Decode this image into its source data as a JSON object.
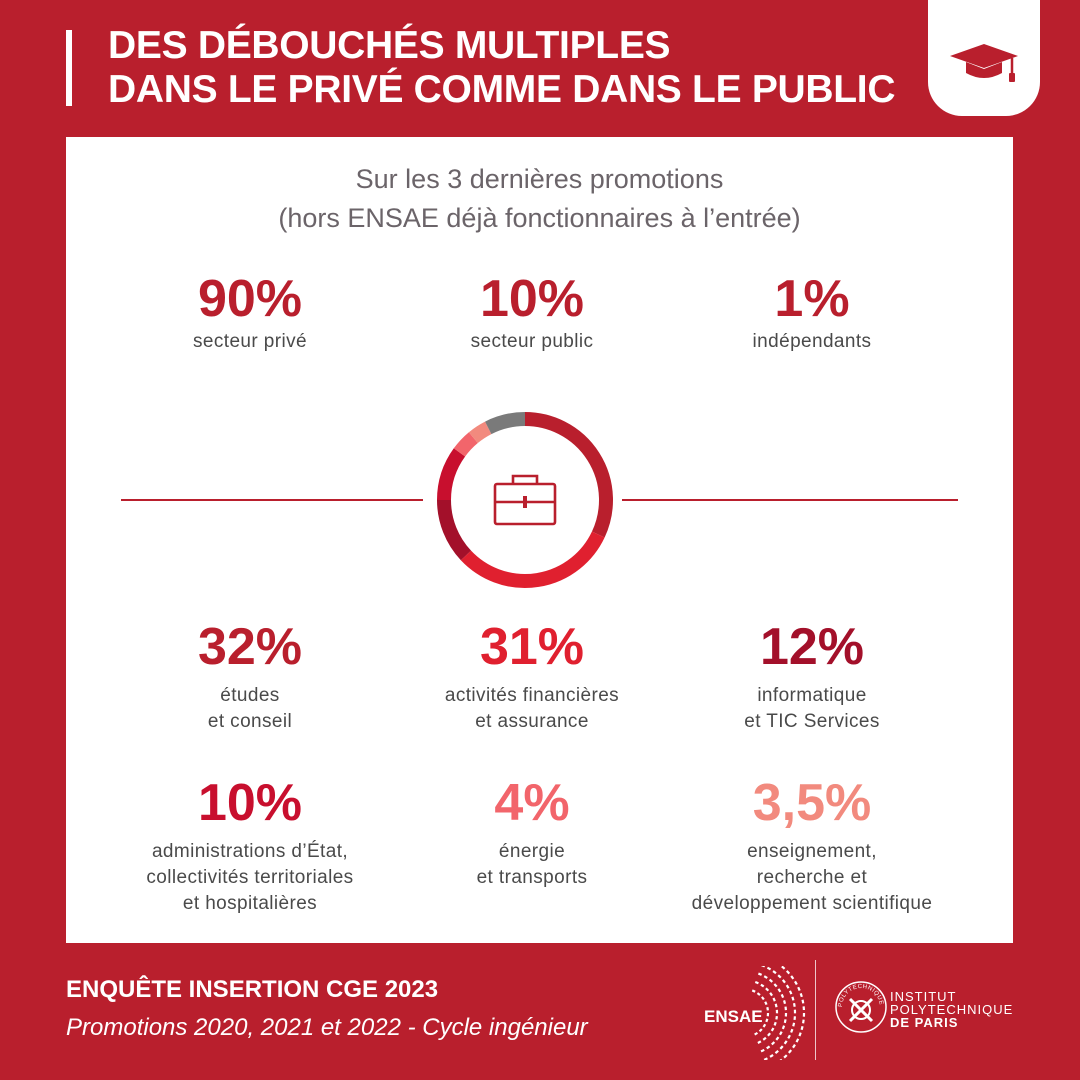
{
  "header": {
    "title_line1": "DES DÉBOUCHÉS MULTIPLES",
    "title_line2": "DANS LE PRIVÉ COMME DANS LE PUBLIC",
    "badge_icon": "graduation-cap-icon"
  },
  "panel": {
    "subtitle_line1": "Sur les 3 dernières promotions",
    "subtitle_line2": "(hors ENSAE déjà fonctionnaires à l’entrée)",
    "center_icon": "briefcase-icon"
  },
  "sectors": [
    {
      "value": "90%",
      "label": "secteur privé",
      "color": "#b91f2d"
    },
    {
      "value": "10%",
      "label": "secteur public",
      "color": "#b91f2d"
    },
    {
      "value": "1%",
      "label": "indépendants",
      "color": "#b91f2d"
    }
  ],
  "chart_data": {
    "type": "pie",
    "categories": [
      "études et conseil",
      "activités financières et assurance",
      "informatique et TIC Services",
      "administrations d’État, collectivités territoriales et hospitalières",
      "énergie et transports",
      "enseignement, recherche et développement scientifique"
    ],
    "values": [
      32,
      31,
      12,
      10,
      4,
      3.5
    ],
    "value_labels": [
      "32%",
      "31%",
      "12%",
      "10%",
      "4%",
      "3,5%"
    ],
    "colors": [
      "#b91f2d",
      "#e0202f",
      "#a3102a",
      "#c80f2e",
      "#f2656b",
      "#f28a7e"
    ],
    "remainder_color": "#7a7a7a",
    "labels": [
      "études\net conseil",
      "activités financières\net assurance",
      "informatique\net TIC Services",
      "administrations d’État,\ncollectivités territoriales\net hospitalières",
      "énergie\net transports",
      "enseignement,\nrecherche et\ndéveloppement scientifique"
    ]
  },
  "footer": {
    "title": "ENQUÊTE INSERTION CGE 2023",
    "subtitle": "Promotions 2020, 2021 et 2022 - Cycle ingénieur",
    "logo_ensae": "ENSAE",
    "ip_line1": "INSTITUT",
    "ip_line2": "POLYTECHNIQUE",
    "ip_line3": "DE PARIS",
    "ip_seal_text": "POLYTECHNIQUE"
  }
}
